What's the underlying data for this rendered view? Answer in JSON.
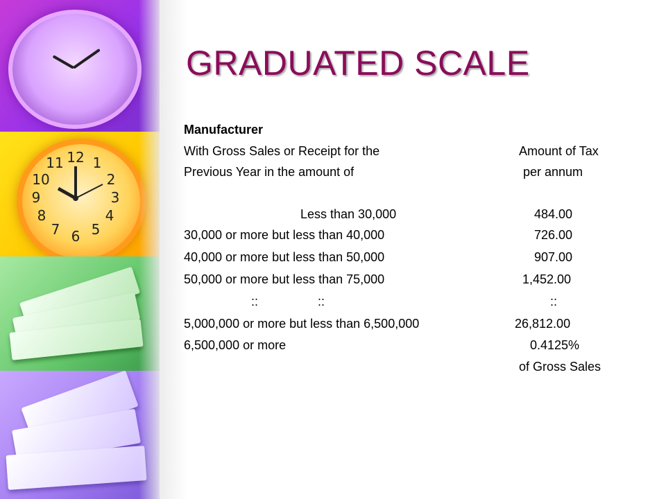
{
  "slide": {
    "title": "GRADUATED SCALE",
    "subtitle": "Manufacturer",
    "header_left_line1": "With Gross Sales or Receipt for the",
    "header_left_line2": "Previous Year in the amount of",
    "header_right_line1": "Amount of Tax",
    "header_right_line2": "per annum",
    "rows": [
      {
        "range": "Less than 30,000",
        "tax": "484.00"
      },
      {
        "range": "30,000 or more but less than 40,000",
        "tax": "726.00"
      },
      {
        "range": "40,000 or more but less than 50,000",
        "tax": "907.00"
      },
      {
        "range": "50,000 or more but less than 75,000",
        "tax": "1,452.00"
      },
      {
        "range_a": "::",
        "range_b": "::",
        "tax": "::"
      },
      {
        "range": "5,000,000 or more but less than 6,500,000",
        "tax": "26,812.00"
      },
      {
        "range": "6,500,000 or more",
        "tax": "0.4125%"
      }
    ],
    "footnote": "of Gross Sales"
  },
  "decor": {
    "clock_numbers": [
      "12",
      "1",
      "2",
      "3",
      "4",
      "5",
      "6",
      "7",
      "8",
      "9",
      "10",
      "11"
    ],
    "colors": {
      "title": "#8b0c5a",
      "purple": "#9a33e8",
      "yellow": "#ffd000",
      "green": "#63c66a",
      "lavender": "#9f7af0"
    }
  }
}
